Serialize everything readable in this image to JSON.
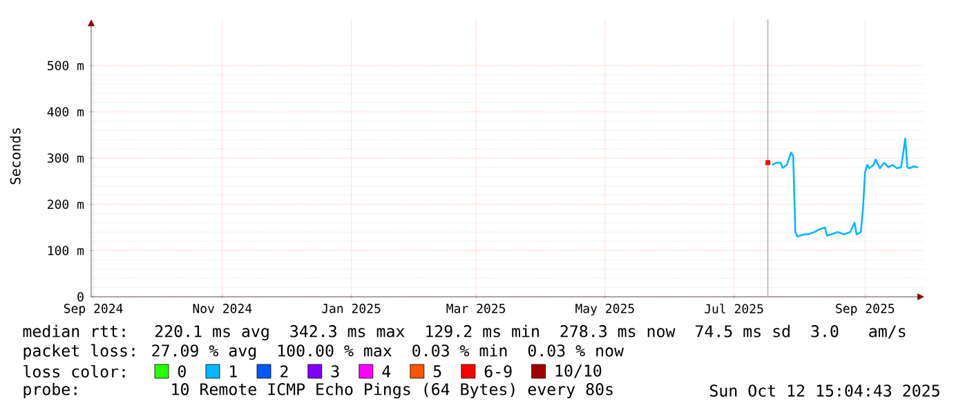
{
  "chart_data": {
    "type": "line",
    "ylabel": "Seconds",
    "legend_title": "loss color:",
    "legend": "bottom",
    "grid": true,
    "xlim": [
      "2024-08-31",
      "2025-09-29"
    ],
    "xticks": [
      {
        "value": "2024-09-01",
        "label": "Sep 2024"
      },
      {
        "value": "2024-11-01",
        "label": "Nov 2024"
      },
      {
        "value": "2025-01-01",
        "label": "Jan 2025"
      },
      {
        "value": "2025-03-01",
        "label": "Mar 2025"
      },
      {
        "value": "2025-05-01",
        "label": "May 2025"
      },
      {
        "value": "2025-07-01",
        "label": "Jul 2025"
      },
      {
        "value": "2025-09-01",
        "label": "Sep 2025"
      }
    ],
    "ylim": [
      0,
      600
    ],
    "yticks": [
      0,
      {
        "value": 100,
        "label": "100 m"
      },
      {
        "value": 200,
        "label": "200 m"
      },
      {
        "value": 300,
        "label": "300 m"
      },
      {
        "value": 400,
        "label": "400 m"
      },
      {
        "value": 500,
        "label": "500 m"
      }
    ],
    "ref_lines": [
      {
        "axis": "x",
        "value": "2025-07-17",
        "color": "#b0b0b0"
      }
    ],
    "series": [
      {
        "name": "0",
        "color": "#26ff00"
      },
      {
        "name": "1",
        "color": "#00b8ff",
        "x": [
          "2025-07-19",
          "2025-07-21",
          "2025-07-23",
          "2025-07-24",
          "2025-07-26",
          "2025-07-28",
          "2025-07-29",
          "2025-07-30",
          "2025-07-31",
          "2025-08-03",
          "2025-08-05",
          "2025-08-08",
          "2025-08-10",
          "2025-08-13",
          "2025-08-14",
          "2025-08-16",
          "2025-08-19",
          "2025-08-22",
          "2025-08-25",
          "2025-08-27",
          "2025-08-28",
          "2025-08-30",
          "2025-08-31",
          "2025-09-01",
          "2025-09-02",
          "2025-09-03",
          "2025-09-05",
          "2025-09-06",
          "2025-09-08",
          "2025-09-10",
          "2025-09-12",
          "2025-09-14",
          "2025-09-16",
          "2025-09-18",
          "2025-09-19",
          "2025-09-20",
          "2025-09-21",
          "2025-09-22",
          "2025-09-24",
          "2025-09-26"
        ],
        "values": [
          285,
          290,
          290,
          279,
          285,
          312,
          305,
          140,
          130,
          135,
          135,
          140,
          145,
          150,
          132,
          135,
          140,
          135,
          140,
          160,
          135,
          140,
          190,
          270,
          285,
          278,
          285,
          297,
          278,
          290,
          280,
          285,
          278,
          280,
          310,
          342,
          280,
          278,
          282,
          280
        ]
      },
      {
        "name": "2",
        "color": "#0059ff"
      },
      {
        "name": "3",
        "color": "#7e00ff"
      },
      {
        "name": "4",
        "color": "#ff00ff"
      },
      {
        "name": "5",
        "color": "#ff5500"
      },
      {
        "name": "6-9",
        "color": "#ff0000",
        "type": "scatter",
        "x": [
          "2025-07-17"
        ],
        "values": [
          290
        ]
      },
      {
        "name": "10/10",
        "color": "#a10000"
      }
    ],
    "annotations": [
      "median rtt:  220.1 ms avg  342.3 ms max  129.2 ms min  278.3 ms now  74.5 ms sd  3.0   am/s",
      "packet loss: 27.09 % avg  100.00 % max  0.03 % min  0.03 % now",
      "probe:       10 Remote ICMP Echo Pings (64 Bytes) every 80s",
      "Sun Oct 12 15:04:43 2025"
    ]
  }
}
